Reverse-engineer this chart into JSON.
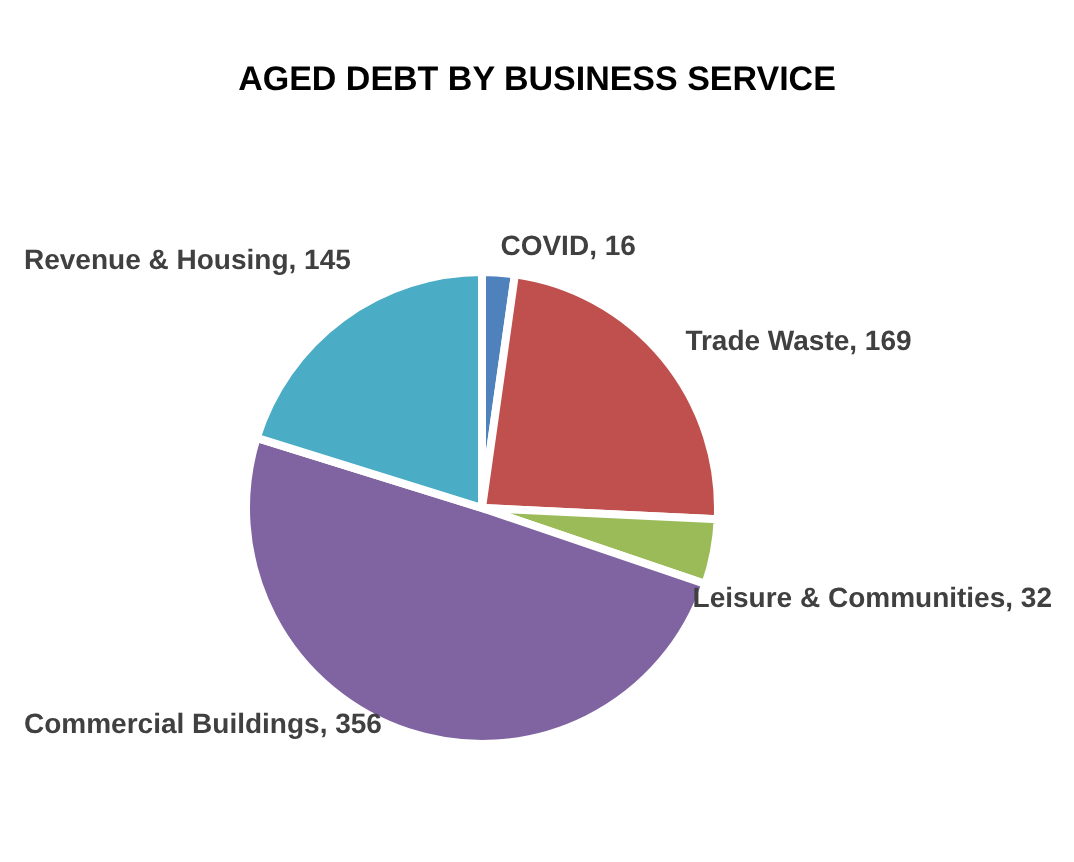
{
  "chart_data": {
    "type": "pie",
    "title": "AGED DEBT BY BUSINESS SERVICE",
    "categories": [
      "COVID",
      "Trade Waste",
      "Leisure & Communities",
      "Commercial Buildings",
      "Revenue & Housing"
    ],
    "values": [
      16,
      169,
      32,
      356,
      145
    ],
    "value_labels": [
      ", 16",
      ", 169",
      ", 32",
      ", 356",
      ", 145"
    ],
    "colors": [
      "#4f81bd",
      "#c0504d",
      "#9bbb59",
      "#8064a2",
      "#4bacc6"
    ]
  }
}
